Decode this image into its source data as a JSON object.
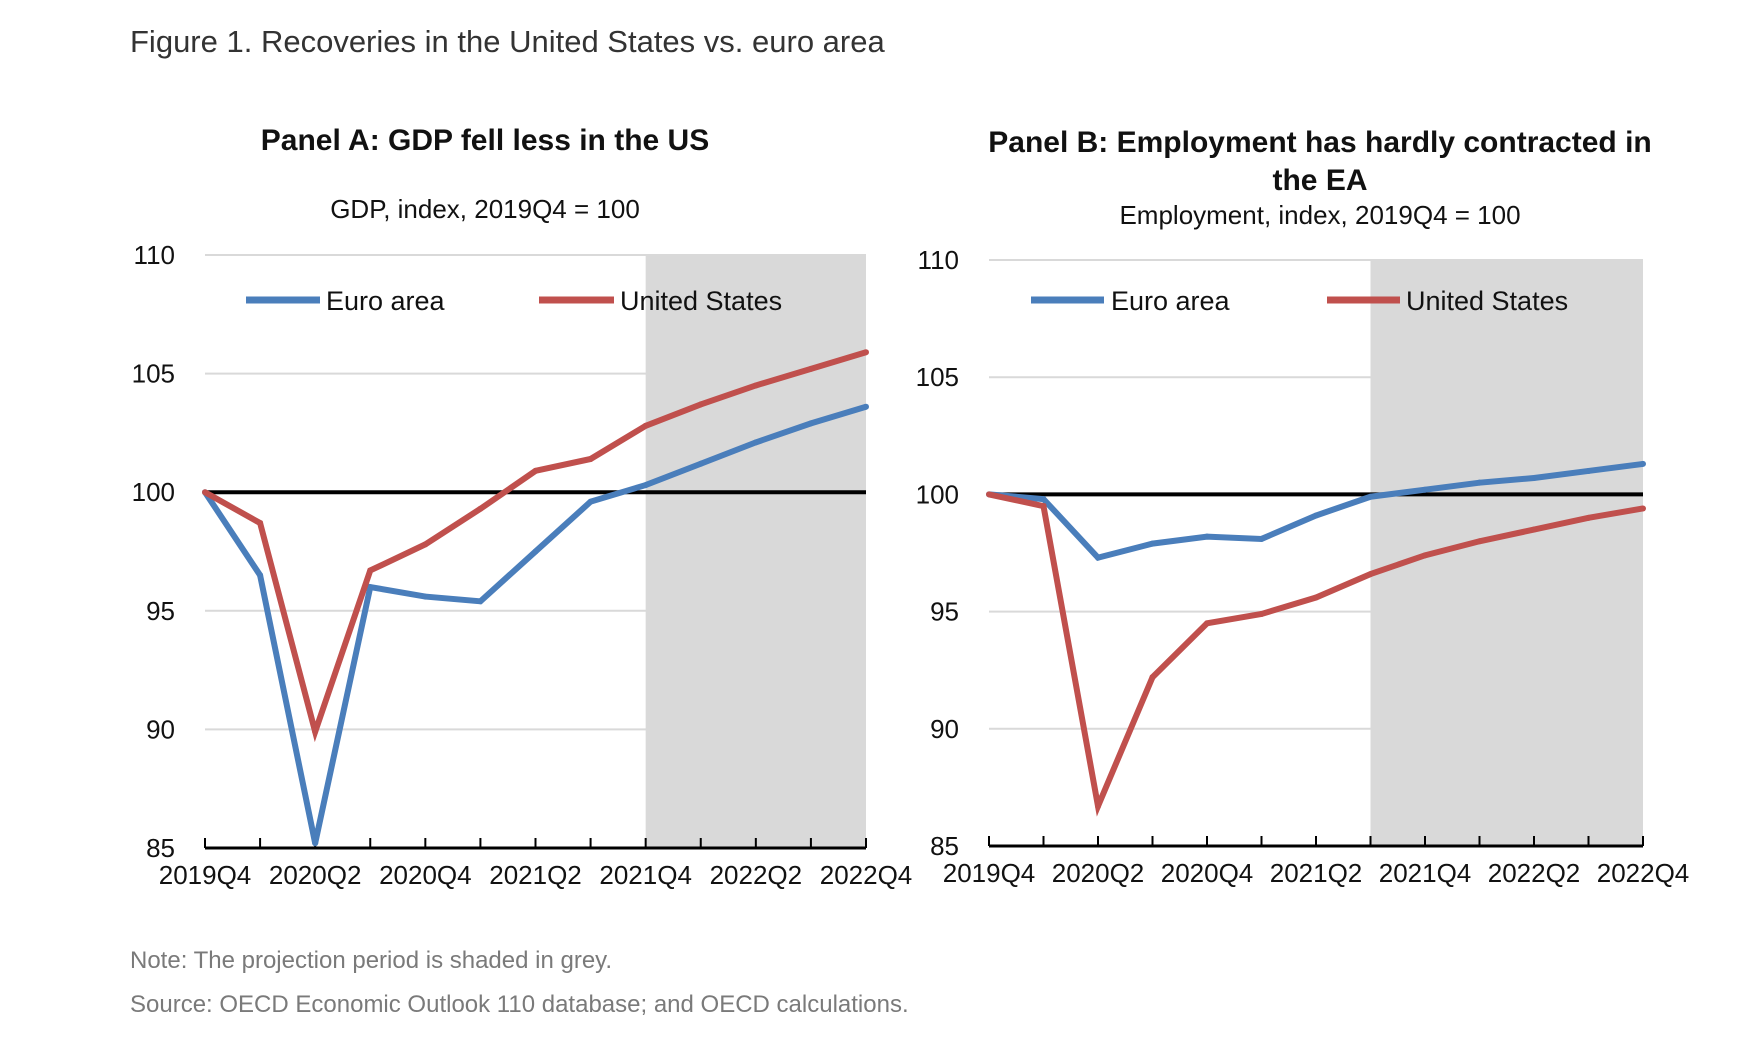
{
  "figure": {
    "title": "Figure 1. Recoveries in the United States vs. euro area",
    "note": "Note: The projection period is shaded in grey.",
    "source": "Source: OECD Economic Outlook 110 database; and OECD calculations."
  },
  "colors": {
    "euro_area": "#4a7ebb",
    "united_states": "#c0504d",
    "projection_shade": "#d9d9d9",
    "baseline": "#000000",
    "grid": "#d9d9d9"
  },
  "chart_data": [
    {
      "type": "line",
      "title": "Panel A: GDP fell less in the US",
      "subtitle": "GDP, index, 2019Q4 = 100",
      "xlabel": "",
      "ylabel": "",
      "categories": [
        "2019Q4",
        "2020Q1",
        "2020Q2",
        "2020Q3",
        "2020Q4",
        "2021Q1",
        "2021Q2",
        "2021Q3",
        "2021Q4",
        "2022Q1",
        "2022Q2",
        "2022Q3",
        "2022Q4"
      ],
      "x_tick_labels": [
        "2019Q4",
        "2020Q2",
        "2020Q4",
        "2021Q2",
        "2021Q4",
        "2022Q2",
        "2022Q4"
      ],
      "ylim": [
        85,
        110
      ],
      "yticks": [
        85,
        90,
        95,
        100,
        105,
        110
      ],
      "reference_line": 100,
      "projection_start": "2021Q4",
      "grid": true,
      "legend": "top",
      "series": [
        {
          "name": "Euro area",
          "color_key": "euro_area",
          "values": [
            100,
            96.5,
            85.2,
            96.0,
            95.6,
            95.4,
            97.5,
            99.6,
            100.3,
            101.2,
            102.1,
            102.9,
            103.6
          ]
        },
        {
          "name": "United States",
          "color_key": "united_states",
          "values": [
            100,
            98.7,
            89.9,
            96.7,
            97.8,
            99.3,
            100.9,
            101.4,
            102.8,
            103.7,
            104.5,
            105.2,
            105.9
          ]
        }
      ]
    },
    {
      "type": "line",
      "title": "Panel B: Employment has hardly contracted in the EA",
      "title_lines": [
        "Panel B: Employment has hardly contracted in",
        "the EA"
      ],
      "subtitle": "Employment, index, 2019Q4 = 100",
      "xlabel": "",
      "ylabel": "",
      "categories": [
        "2019Q4",
        "2020Q1",
        "2020Q2",
        "2020Q3",
        "2020Q4",
        "2021Q1",
        "2021Q2",
        "2021Q3",
        "2021Q4",
        "2022Q1",
        "2022Q2",
        "2022Q3",
        "2022Q4"
      ],
      "x_tick_labels": [
        "2019Q4",
        "2020Q2",
        "2020Q4",
        "2021Q2",
        "2021Q4",
        "2022Q2",
        "2022Q4"
      ],
      "ylim": [
        85,
        110
      ],
      "yticks": [
        85,
        90,
        95,
        100,
        105,
        110
      ],
      "reference_line": 100,
      "projection_start": "2021Q3",
      "grid": true,
      "legend": "top",
      "series": [
        {
          "name": "Euro area",
          "color_key": "euro_area",
          "values": [
            100,
            99.8,
            97.3,
            97.9,
            98.2,
            98.1,
            99.1,
            99.9,
            100.2,
            100.5,
            100.7,
            101.0,
            101.3
          ]
        },
        {
          "name": "United States",
          "color_key": "united_states",
          "values": [
            100,
            99.5,
            86.7,
            92.2,
            94.5,
            94.9,
            95.6,
            96.6,
            97.4,
            98.0,
            98.5,
            99.0,
            99.4
          ]
        }
      ]
    }
  ]
}
